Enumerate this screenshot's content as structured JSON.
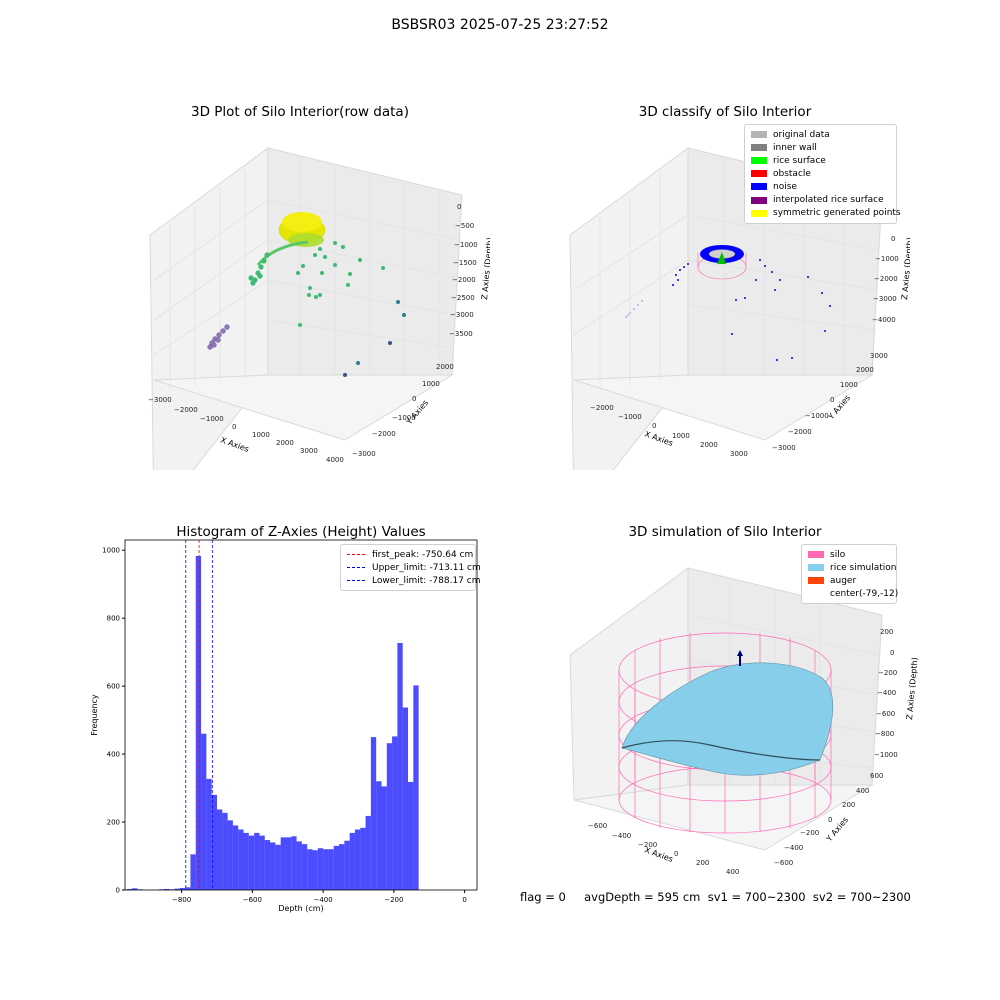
{
  "suptitle": "BSBSR03 2025-07-25 23:27:52",
  "panels": {
    "raw": {
      "title": "3D Plot of Silo Interior(row data)",
      "xlabel": "X Axies",
      "ylabel": "Y Axies",
      "zlabel": "Z Axies (Depth)",
      "xticks": [
        "−3000",
        "−2000",
        "−1000",
        "0",
        "1000",
        "2000",
        "3000",
        "4000"
      ],
      "yticks": [
        "−3000",
        "−2000",
        "−1000",
        "0",
        "1000",
        "2000"
      ],
      "zticks": [
        "0",
        "−500",
        "−1000",
        "−1500",
        "−2000",
        "−2500",
        "−3000",
        "−3500"
      ]
    },
    "classify": {
      "title": "3D classify of Silo Interior",
      "xlabel": "X Axies",
      "ylabel": "Y Axies",
      "zlabel": "Z Axies (Depth)",
      "xticks": [
        "−2000",
        "−1000",
        "0",
        "1000",
        "2000",
        "3000"
      ],
      "yticks": [
        "−3000",
        "−2000",
        "−1000",
        "0",
        "1000",
        "2000",
        "3000"
      ],
      "zticks": [
        "1000",
        "0",
        "−1000",
        "−2000",
        "−3000",
        "−4000"
      ],
      "legend": [
        {
          "label": "original data",
          "color": "#b3b3b3"
        },
        {
          "label": "inner wall",
          "color": "#808080"
        },
        {
          "label": "rice surface",
          "color": "#00ff00"
        },
        {
          "label": "obstacle",
          "color": "#ff0000"
        },
        {
          "label": "noise",
          "color": "#0000ff"
        },
        {
          "label": "interpolated rice surface",
          "color": "#800080"
        },
        {
          "label": "symmetric generated points",
          "color": "#ffff00"
        }
      ]
    },
    "hist": {
      "title": "Histogram of Z-Axies (Height) Values",
      "legend": [
        {
          "label": "first_peak: -750.64 cm",
          "color": "#ff0000"
        },
        {
          "label": "Upper_limit: -713.11 cm",
          "color": "#0000ff"
        },
        {
          "label": "Lower_limit: -788.17 cm",
          "color": "#0000ff"
        }
      ]
    },
    "sim": {
      "title": "3D simulation of Silo Interior",
      "xlabel": "X Axies",
      "ylabel": "Y Axies",
      "zlabel": "Z Axies (Depth)",
      "xticks": [
        "−600",
        "−400",
        "−200",
        "0",
        "200",
        "400"
      ],
      "yticks": [
        "−600",
        "−400",
        "−200",
        "0",
        "200",
        "400",
        "600"
      ],
      "zticks": [
        "200",
        "0",
        "−200",
        "−400",
        "−600",
        "−800",
        "−1000"
      ],
      "legend": [
        {
          "label": "silo",
          "color": "#ff69b4"
        },
        {
          "label": "rice simulation",
          "color": "#87ceeb"
        },
        {
          "label": "auger",
          "color": "#ff4500"
        },
        {
          "label": "center(-79,-12)",
          "color": ""
        }
      ]
    }
  },
  "status": {
    "text": "flag = 0     avgDepth = 595 cm  sv1 = 700~2300  sv2 = 700~2300"
  },
  "chart_data": {
    "type": "bar",
    "title": "Histogram of Z-Axies (Height) Values",
    "xlabel": "Depth (cm)",
    "ylabel": "Frequency",
    "xlim": [
      -960,
      35
    ],
    "ylim": [
      0,
      1030
    ],
    "xticks": [
      -800,
      -600,
      -400,
      -200,
      0
    ],
    "yticks": [
      0,
      200,
      400,
      600,
      800,
      1000
    ],
    "bar_color": "#0000ff",
    "bins": [
      {
        "x0": -955,
        "x1": -940,
        "value": 3
      },
      {
        "x0": -940,
        "x1": -925,
        "value": 5
      },
      {
        "x0": -925,
        "x1": -910,
        "value": 2
      },
      {
        "x0": -910,
        "x1": -895,
        "value": 0
      },
      {
        "x0": -895,
        "x1": -880,
        "value": 0
      },
      {
        "x0": -880,
        "x1": -865,
        "value": 0
      },
      {
        "x0": -865,
        "x1": -850,
        "value": 2
      },
      {
        "x0": -850,
        "x1": -835,
        "value": 3
      },
      {
        "x0": -835,
        "x1": -820,
        "value": 2
      },
      {
        "x0": -820,
        "x1": -805,
        "value": 4
      },
      {
        "x0": -805,
        "x1": -790,
        "value": 6
      },
      {
        "x0": -790,
        "x1": -775,
        "value": 8
      },
      {
        "x0": -775,
        "x1": -760,
        "value": 105
      },
      {
        "x0": -760,
        "x1": -745,
        "value": 983
      },
      {
        "x0": -745,
        "x1": -730,
        "value": 460
      },
      {
        "x0": -730,
        "x1": -715,
        "value": 327
      },
      {
        "x0": -715,
        "x1": -700,
        "value": 280
      },
      {
        "x0": -700,
        "x1": -685,
        "value": 237
      },
      {
        "x0": -685,
        "x1": -670,
        "value": 227
      },
      {
        "x0": -670,
        "x1": -655,
        "value": 205
      },
      {
        "x0": -655,
        "x1": -640,
        "value": 190
      },
      {
        "x0": -640,
        "x1": -625,
        "value": 178
      },
      {
        "x0": -625,
        "x1": -610,
        "value": 168
      },
      {
        "x0": -610,
        "x1": -595,
        "value": 160
      },
      {
        "x0": -595,
        "x1": -580,
        "value": 168
      },
      {
        "x0": -580,
        "x1": -565,
        "value": 160
      },
      {
        "x0": -565,
        "x1": -550,
        "value": 147
      },
      {
        "x0": -550,
        "x1": -535,
        "value": 140
      },
      {
        "x0": -535,
        "x1": -520,
        "value": 133
      },
      {
        "x0": -520,
        "x1": -505,
        "value": 155
      },
      {
        "x0": -505,
        "x1": -490,
        "value": 155
      },
      {
        "x0": -490,
        "x1": -475,
        "value": 158
      },
      {
        "x0": -475,
        "x1": -460,
        "value": 143
      },
      {
        "x0": -460,
        "x1": -445,
        "value": 135
      },
      {
        "x0": -445,
        "x1": -430,
        "value": 120
      },
      {
        "x0": -430,
        "x1": -415,
        "value": 117
      },
      {
        "x0": -415,
        "x1": -400,
        "value": 123
      },
      {
        "x0": -400,
        "x1": -385,
        "value": 120
      },
      {
        "x0": -385,
        "x1": -370,
        "value": 120
      },
      {
        "x0": -370,
        "x1": -355,
        "value": 130
      },
      {
        "x0": -355,
        "x1": -340,
        "value": 135
      },
      {
        "x0": -340,
        "x1": -325,
        "value": 145
      },
      {
        "x0": -325,
        "x1": -310,
        "value": 168
      },
      {
        "x0": -310,
        "x1": -295,
        "value": 178
      },
      {
        "x0": -295,
        "x1": -280,
        "value": 183
      },
      {
        "x0": -280,
        "x1": -265,
        "value": 218
      },
      {
        "x0": -265,
        "x1": -250,
        "value": 450
      },
      {
        "x0": -250,
        "x1": -235,
        "value": 320
      },
      {
        "x0": -235,
        "x1": -220,
        "value": 305
      },
      {
        "x0": -220,
        "x1": -205,
        "value": 432
      },
      {
        "x0": -205,
        "x1": -190,
        "value": 452
      },
      {
        "x0": -190,
        "x1": -175,
        "value": 727
      },
      {
        "x0": -175,
        "x1": -160,
        "value": 537
      },
      {
        "x0": -160,
        "x1": -145,
        "value": 318
      },
      {
        "x0": -145,
        "x1": -130,
        "value": 602
      }
    ],
    "vlines": [
      {
        "name": "first_peak: -750.64 cm",
        "x": -750.64,
        "color": "#ff0000"
      },
      {
        "name": "Upper_limit: -713.11 cm",
        "x": -713.11,
        "color": "#0000ff"
      },
      {
        "name": "Lower_limit: -788.17 cm",
        "x": -788.17,
        "color": "#0000ff"
      }
    ]
  }
}
